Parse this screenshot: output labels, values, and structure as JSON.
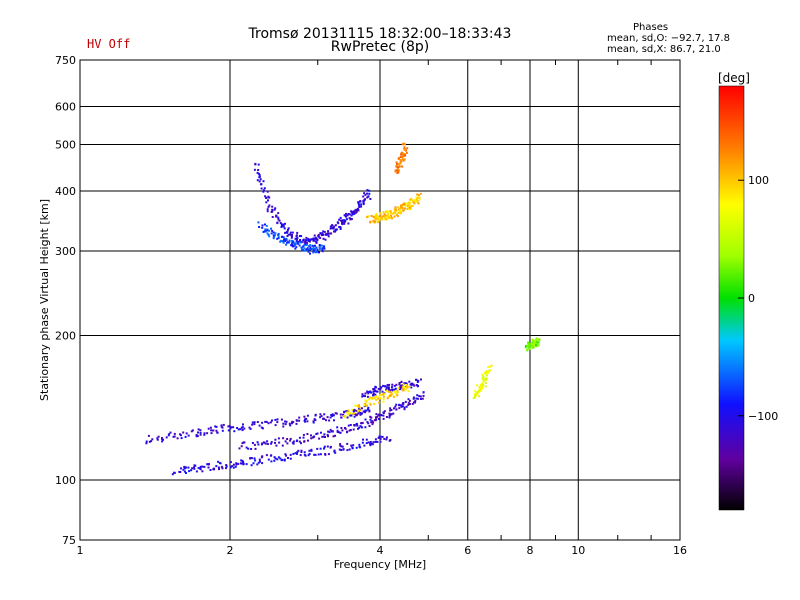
{
  "header": {
    "status_text": "HV Off",
    "title_line1": "Tromsø 20131115 18:32:00–18:33:43",
    "title_line2": "RwPretec (8p)"
  },
  "phases_box": {
    "heading": "Phases",
    "line_o": "mean, sd,O: −92.7, 17.8",
    "line_x": "mean, sd,X:  86.7, 21.0"
  },
  "colorbar": {
    "label": "[deg]",
    "ticks": [
      100,
      0,
      -100
    ],
    "ticks_text": [
      "100",
      "0",
      "−100"
    ],
    "range": [
      -180,
      180
    ]
  },
  "colors": {
    "status": "#c00000",
    "axis": "#000000"
  },
  "chart_data": {
    "type": "scatter",
    "title": "Tromsø 20131115 18:32:00–18:33:43",
    "subtitle": "RwPretec (8p)",
    "xlabel": "Frequency [MHz]",
    "ylabel": "Stationary phase Virtual Height [km]",
    "x_scale": "log",
    "y_scale": "log",
    "xlim": [
      1,
      16
    ],
    "ylim": [
      75,
      750
    ],
    "x_ticks": [
      1,
      2,
      4,
      6,
      8,
      10,
      16
    ],
    "y_ticks": [
      75,
      100,
      200,
      300,
      400,
      500,
      600,
      750
    ],
    "x_grid": [
      2,
      4,
      6,
      8,
      10
    ],
    "y_grid": [
      100,
      200,
      300,
      400,
      500,
      600
    ],
    "color_scale": "phase [deg], -180 to 180",
    "traces": [
      {
        "f": [
          1.55,
          1.8,
          2.1,
          2.5,
          3.0,
          3.6,
          4.2
        ],
        "h": [
          105,
          107,
          109,
          112,
          115,
          119,
          123
        ],
        "phase": -105
      },
      {
        "f": [
          1.35,
          1.7,
          2.0,
          2.5,
          3.0,
          3.5,
          3.8
        ],
        "h": [
          122,
          126,
          129,
          132,
          135,
          138,
          142
        ],
        "phase": -110
      },
      {
        "f": [
          2.1,
          2.6,
          3.1,
          3.6,
          4.0,
          4.4,
          4.9
        ],
        "h": [
          118,
          121,
          125,
          130,
          136,
          143,
          152
        ],
        "phase": -115
      },
      {
        "f": [
          3.7,
          4.0,
          4.4,
          4.8
        ],
        "h": [
          152,
          155,
          158,
          161
        ],
        "phase": -110
      },
      {
        "f": [
          3.4,
          3.8,
          4.2,
          4.6
        ],
        "h": [
          138,
          146,
          152,
          158
        ],
        "phase": 95
      },
      {
        "f": [
          2.25,
          2.4,
          2.6,
          2.8,
          3.0,
          3.2,
          3.4,
          3.6,
          3.8
        ],
        "h": [
          450,
          370,
          330,
          315,
          320,
          335,
          350,
          370,
          400
        ],
        "phase": -110
      },
      {
        "f": [
          2.3,
          2.5,
          2.7,
          2.9,
          3.1
        ],
        "h": [
          340,
          320,
          310,
          303,
          305
        ],
        "phase": -75
      },
      {
        "f": [
          3.8,
          4.0,
          4.2,
          4.4,
          4.6,
          4.8
        ],
        "h": [
          350,
          355,
          360,
          368,
          378,
          392
        ],
        "phase": 100
      },
      {
        "f": [
          4.3,
          4.4,
          4.5
        ],
        "h": [
          440,
          470,
          500
        ],
        "phase": 130
      },
      {
        "f": [
          6.2,
          6.4,
          6.6
        ],
        "h": [
          150,
          160,
          172
        ],
        "phase": 70
      },
      {
        "f": [
          7.9,
          8.1,
          8.3
        ],
        "h": [
          190,
          193,
          196
        ],
        "phase": 25
      }
    ]
  }
}
